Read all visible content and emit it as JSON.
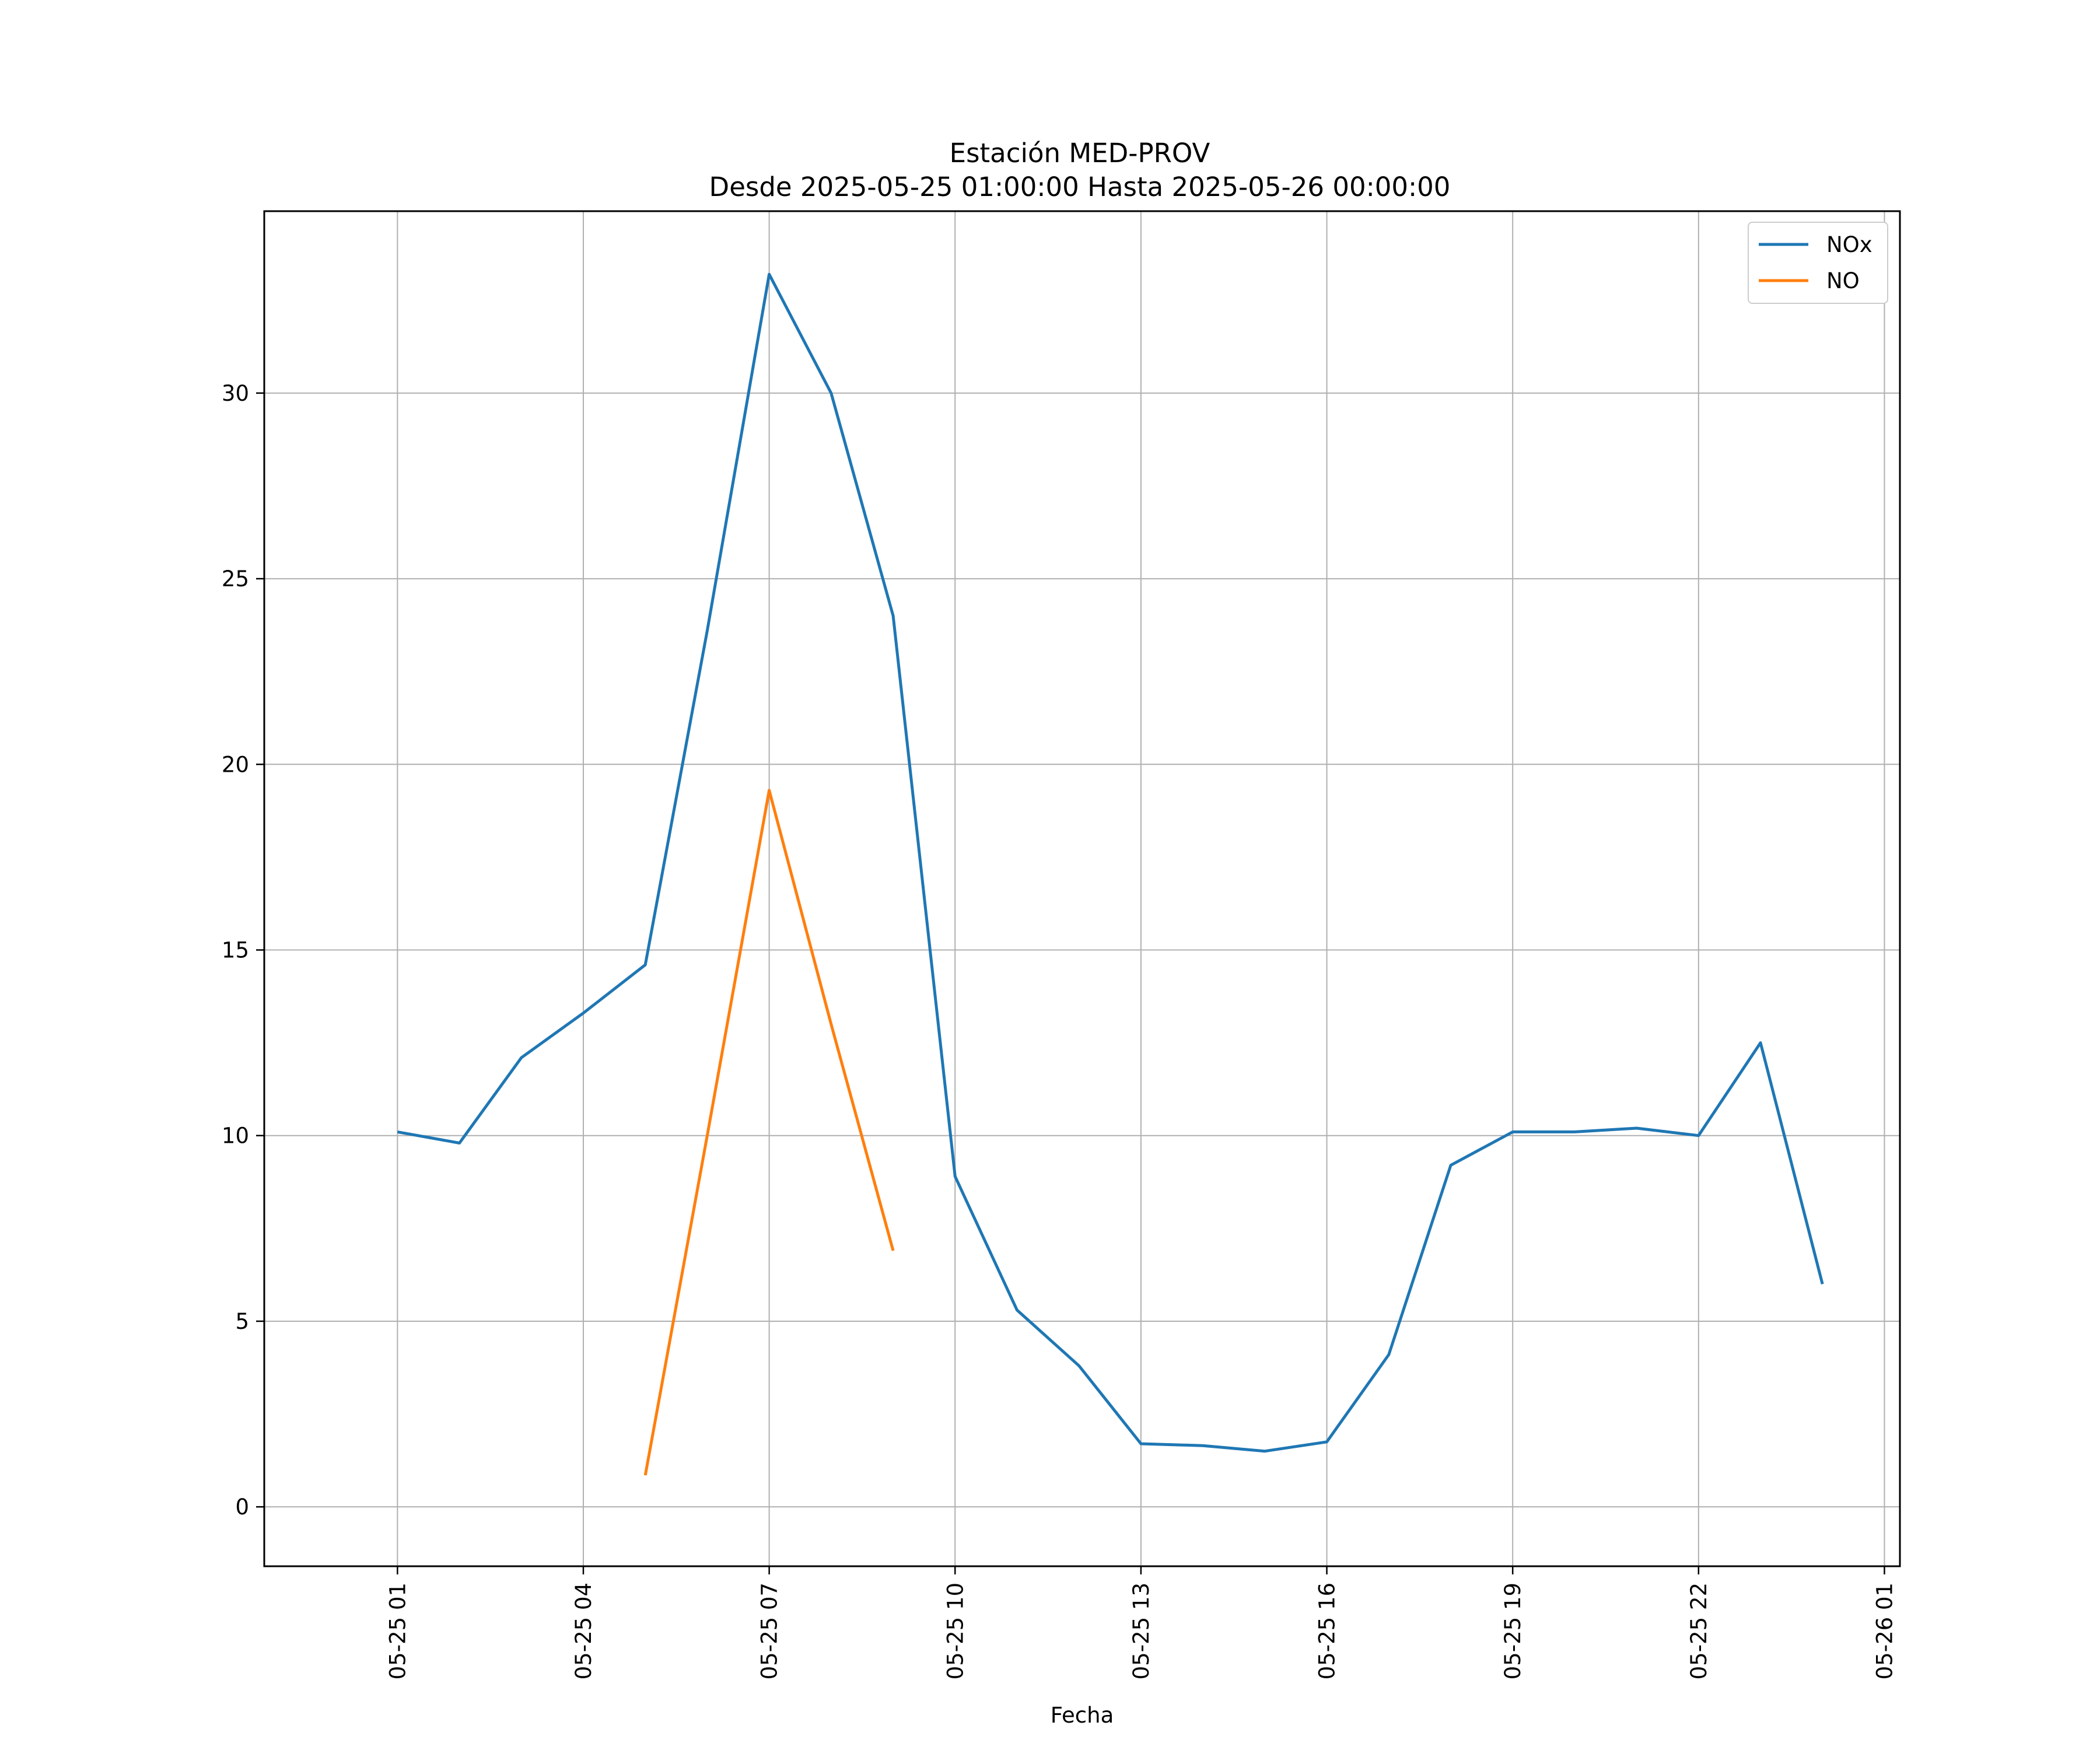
{
  "chart_data": {
    "type": "line",
    "title": "Estación MED-PROV",
    "subtitle": "Desde 2025-05-25 01:00:00 Hasta 2025-05-26 00:00:00",
    "xlabel": "Fecha",
    "ylabel": "",
    "x": [
      "2025-05-25 01:00",
      "2025-05-25 02:00",
      "2025-05-25 03:00",
      "2025-05-25 04:00",
      "2025-05-25 05:00",
      "2025-05-25 06:00",
      "2025-05-25 07:00",
      "2025-05-25 08:00",
      "2025-05-25 09:00",
      "2025-05-25 10:00",
      "2025-05-25 11:00",
      "2025-05-25 12:00",
      "2025-05-25 13:00",
      "2025-05-25 14:00",
      "2025-05-25 15:00",
      "2025-05-25 16:00",
      "2025-05-25 17:00",
      "2025-05-25 18:00",
      "2025-05-25 19:00",
      "2025-05-25 20:00",
      "2025-05-25 21:00",
      "2025-05-25 22:00",
      "2025-05-25 23:00",
      "2025-05-26 00:00"
    ],
    "series": [
      {
        "name": "NOx",
        "color": "#1f77b4",
        "values": [
          10.1,
          9.8,
          12.1,
          13.3,
          14.6,
          23.6,
          33.2,
          30.0,
          24.0,
          8.9,
          5.3,
          3.8,
          1.7,
          1.65,
          1.5,
          1.75,
          4.1,
          9.2,
          10.1,
          10.1,
          10.2,
          10.0,
          12.5,
          6.0
        ]
      },
      {
        "name": "NO",
        "color": "#ff7f0e",
        "values": [
          null,
          null,
          null,
          null,
          0.85,
          10.0,
          19.3,
          13.0,
          6.9,
          null,
          null,
          null,
          null,
          null,
          null,
          null,
          null,
          null,
          null,
          null,
          null,
          null,
          null,
          null
        ]
      }
    ],
    "xticks": [
      "05-25 01",
      "05-25 04",
      "05-25 07",
      "05-25 10",
      "05-25 13",
      "05-25 16",
      "05-25 19",
      "05-25 22",
      "05-26 01"
    ],
    "xlim": [
      "2025-05-24 22:51",
      "2025-05-26 01:15"
    ],
    "yticks": [
      "0",
      "5",
      "10",
      "15",
      "20",
      "25",
      "30"
    ],
    "ylim": [
      -1.6,
      34.9
    ],
    "grid": true,
    "legend_position": "top-right"
  }
}
